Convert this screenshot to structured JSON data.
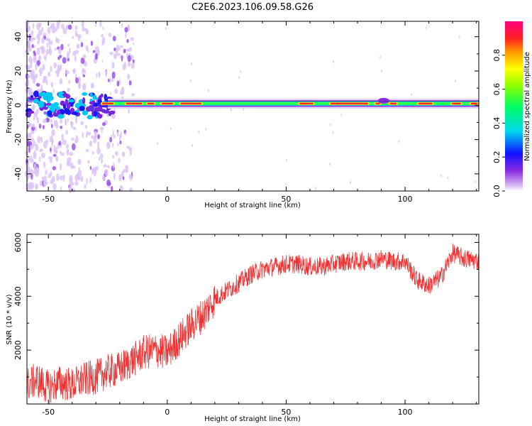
{
  "title": "C2E6.2023.106.09.58.G26",
  "chart_data": [
    {
      "type": "heatmap",
      "xlabel": "Height of straight line (km)",
      "ylabel": "Frequency (Hz)",
      "xlim": [
        -59,
        131
      ],
      "ylim": [
        -50,
        49
      ],
      "xticks": [
        -50,
        0,
        50,
        100
      ],
      "yticks": [
        -40,
        -20,
        0,
        20,
        40
      ],
      "ridge_frequency_hz": 1,
      "colorbar": {
        "label": "Normalized spectral amplitude",
        "range": [
          0,
          1
        ],
        "ticks": [
          0.0,
          0.2,
          0.4,
          0.6,
          0.8
        ],
        "tick_labels": [
          "0.0",
          "0.2",
          "0.4",
          "0.6",
          "0.8"
        ]
      }
    },
    {
      "type": "line",
      "xlabel": "Height of straight line (km)",
      "ylabel": "SNR (10 * v/v)",
      "xlim": [
        -59,
        131
      ],
      "ylim": [
        0,
        6300
      ],
      "xticks": [
        -50,
        0,
        50,
        100
      ],
      "yticks": [
        2000,
        4000,
        6000
      ],
      "series": [
        {
          "color": "#f03232",
          "x": [
            -59,
            -55,
            -50,
            -45,
            -40,
            -35,
            -30,
            -25,
            -20,
            -15,
            -10,
            -5,
            0,
            5,
            10,
            15,
            20,
            25,
            30,
            35,
            40,
            45,
            50,
            55,
            60,
            65,
            70,
            75,
            80,
            85,
            90,
            95,
            100,
            105,
            110,
            115,
            120,
            125,
            131
          ],
          "y": [
            700,
            900,
            600,
            800,
            700,
            900,
            1000,
            1200,
            1300,
            1600,
            1900,
            2000,
            1900,
            2400,
            2900,
            3300,
            3900,
            4200,
            4500,
            4800,
            5000,
            5100,
            5200,
            5200,
            5100,
            5100,
            5200,
            5300,
            5300,
            5300,
            5400,
            5300,
            5300,
            4600,
            4400,
            4700,
            5600,
            5400,
            5300
          ]
        }
      ]
    }
  ]
}
